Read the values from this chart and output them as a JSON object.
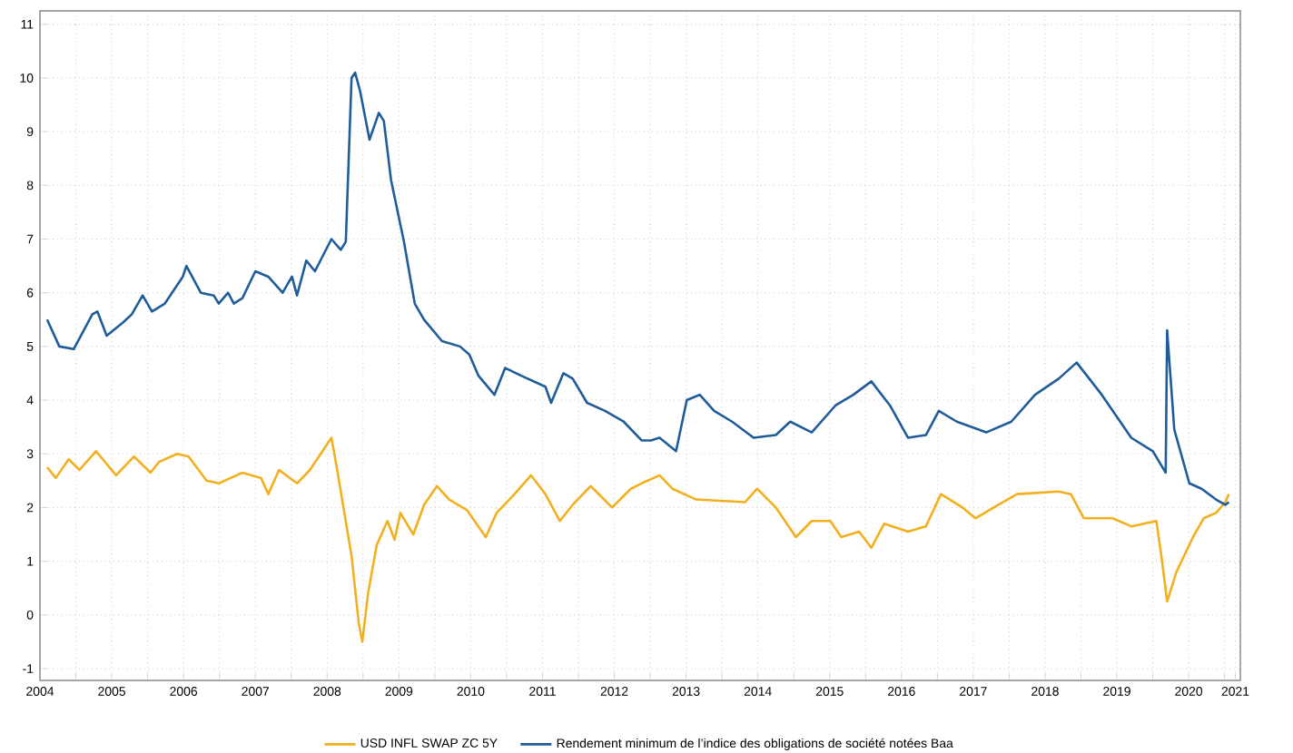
{
  "chart_data": {
    "type": "line",
    "series": [
      {
        "name": "USD INFL SWAP ZC 5Y",
        "color": "#f2b01e",
        "x": [
          2004.6,
          2004.72,
          2004.9,
          2005.05,
          2005.28,
          2005.56,
          2005.81,
          2006.04,
          2006.16,
          2006.41,
          2006.57,
          2006.82,
          2006.99,
          2007.32,
          2007.58,
          2007.68,
          2007.83,
          2008.08,
          2008.26,
          2008.56,
          2008.64,
          2008.84,
          2008.94,
          2008.99,
          2009.07,
          2009.19,
          2009.34,
          2009.44,
          2009.52,
          2009.7,
          2009.85,
          2010.03,
          2010.2,
          2010.45,
          2010.71,
          2010.86,
          2011.11,
          2011.34,
          2011.54,
          2011.74,
          2011.92,
          2012.17,
          2012.47,
          2012.73,
          2012.88,
          2013.13,
          2013.31,
          2013.64,
          2014.32,
          2014.49,
          2014.75,
          2015.03,
          2015.25,
          2015.51,
          2015.66,
          2015.91,
          2016.08,
          2016.26,
          2016.59,
          2016.84,
          2017.05,
          2017.35,
          2017.53,
          2017.85,
          2018.11,
          2018.69,
          2018.86,
          2019.04,
          2019.44,
          2019.7,
          2020.05,
          2020.13,
          2020.2,
          2020.33,
          2020.56,
          2020.71,
          2020.88,
          2021.01,
          2021.06
        ],
        "values": [
          2.75,
          2.55,
          2.9,
          2.7,
          3.05,
          2.6,
          2.95,
          2.65,
          2.85,
          3.0,
          2.95,
          2.5,
          2.45,
          2.65,
          2.55,
          2.25,
          2.7,
          2.45,
          2.7,
          3.3,
          2.7,
          1.1,
          -0.15,
          -0.5,
          0.4,
          1.3,
          1.75,
          1.4,
          1.9,
          1.5,
          2.05,
          2.4,
          2.15,
          1.95,
          1.45,
          1.9,
          2.25,
          2.6,
          2.25,
          1.75,
          2.05,
          2.4,
          2.0,
          2.35,
          2.45,
          2.6,
          2.35,
          2.15,
          2.1,
          2.35,
          2.0,
          1.45,
          1.75,
          1.75,
          1.45,
          1.55,
          1.25,
          1.7,
          1.55,
          1.65,
          2.25,
          2.0,
          1.8,
          2.05,
          2.25,
          2.3,
          2.25,
          1.8,
          1.8,
          1.65,
          1.75,
          1.0,
          0.25,
          0.8,
          1.45,
          1.8,
          1.9,
          2.1,
          2.25
        ]
      },
      {
        "name": "Rendement minimum de l’indice des obligations de société notées Baa",
        "color": "#1f5c99",
        "x": [
          2004.6,
          2004.77,
          2004.97,
          2005.23,
          2005.3,
          2005.43,
          2005.66,
          2005.78,
          2005.93,
          2006.06,
          2006.24,
          2006.49,
          2006.54,
          2006.74,
          2006.92,
          2006.99,
          2007.12,
          2007.2,
          2007.32,
          2007.5,
          2007.68,
          2007.88,
          2008.01,
          2008.08,
          2008.21,
          2008.33,
          2008.56,
          2008.69,
          2008.76,
          2008.84,
          2008.89,
          2008.96,
          2009.09,
          2009.22,
          2009.29,
          2009.39,
          2009.57,
          2009.72,
          2009.85,
          2010.1,
          2010.35,
          2010.48,
          2010.61,
          2010.83,
          2010.98,
          2011.21,
          2011.54,
          2011.62,
          2011.79,
          2011.92,
          2012.12,
          2012.37,
          2012.63,
          2012.88,
          2013.01,
          2013.13,
          2013.36,
          2013.51,
          2013.69,
          2013.89,
          2014.14,
          2014.44,
          2014.75,
          2014.95,
          2015.25,
          2015.58,
          2015.83,
          2016.08,
          2016.34,
          2016.59,
          2016.84,
          2017.02,
          2017.27,
          2017.68,
          2018.03,
          2018.36,
          2018.69,
          2018.94,
          2019.29,
          2019.7,
          2020.0,
          2020.18,
          2020.2,
          2020.3,
          2020.51,
          2020.68,
          2020.88,
          2021.01,
          2021.06
        ],
        "values": [
          5.5,
          5.0,
          4.95,
          5.6,
          5.65,
          5.2,
          5.45,
          5.6,
          5.95,
          5.65,
          5.8,
          6.3,
          6.5,
          6.0,
          5.95,
          5.8,
          6.0,
          5.8,
          5.9,
          6.4,
          6.3,
          6.0,
          6.3,
          5.95,
          6.6,
          6.4,
          7.0,
          6.8,
          6.95,
          10.0,
          10.1,
          9.75,
          8.85,
          9.35,
          9.2,
          8.1,
          6.95,
          5.8,
          5.5,
          5.1,
          5.0,
          4.85,
          4.45,
          4.1,
          4.6,
          4.45,
          4.25,
          3.95,
          4.5,
          4.4,
          3.95,
          3.8,
          3.6,
          3.25,
          3.25,
          3.3,
          3.05,
          4.0,
          4.1,
          3.8,
          3.6,
          3.3,
          3.35,
          3.6,
          3.4,
          3.9,
          4.1,
          4.35,
          3.9,
          3.3,
          3.35,
          3.8,
          3.6,
          3.4,
          3.6,
          4.1,
          4.4,
          4.7,
          4.1,
          3.3,
          3.05,
          2.65,
          5.3,
          3.45,
          2.45,
          2.35,
          2.15,
          2.05,
          2.1
        ]
      }
    ],
    "xlim": [
      2004.5,
      2021.22
    ],
    "ylim": [
      -1.22,
      11.25
    ],
    "xticks": [
      {
        "value": 2004.5,
        "label": "2004"
      },
      {
        "value": 2005,
        "label": null
      },
      {
        "value": 2005.5,
        "label": "2005"
      },
      {
        "value": 2006,
        "label": null
      },
      {
        "value": 2006.5,
        "label": "2006"
      },
      {
        "value": 2007,
        "label": null
      },
      {
        "value": 2007.5,
        "label": "2007"
      },
      {
        "value": 2008,
        "label": null
      },
      {
        "value": 2008.5,
        "label": "2008"
      },
      {
        "value": 2009,
        "label": null
      },
      {
        "value": 2009.5,
        "label": "2009"
      },
      {
        "value": 2010,
        "label": null
      },
      {
        "value": 2010.5,
        "label": "2010"
      },
      {
        "value": 2011,
        "label": null
      },
      {
        "value": 2011.5,
        "label": "2011"
      },
      {
        "value": 2012,
        "label": null
      },
      {
        "value": 2012.5,
        "label": "2012"
      },
      {
        "value": 2013,
        "label": null
      },
      {
        "value": 2013.5,
        "label": "2013"
      },
      {
        "value": 2014,
        "label": null
      },
      {
        "value": 2014.5,
        "label": "2014"
      },
      {
        "value": 2015,
        "label": null
      },
      {
        "value": 2015.5,
        "label": "2015"
      },
      {
        "value": 2016,
        "label": null
      },
      {
        "value": 2016.5,
        "label": "2016"
      },
      {
        "value": 2017,
        "label": null
      },
      {
        "value": 2017.5,
        "label": "2017"
      },
      {
        "value": 2018,
        "label": null
      },
      {
        "value": 2018.5,
        "label": "2018"
      },
      {
        "value": 2019,
        "label": null
      },
      {
        "value": 2019.5,
        "label": "2019"
      },
      {
        "value": 2020,
        "label": null
      },
      {
        "value": 2020.5,
        "label": "2020"
      },
      {
        "value": 2021,
        "label": null
      },
      {
        "value": 2021.15,
        "label": "2021"
      }
    ],
    "yticks": [
      -1,
      0,
      1,
      2,
      3,
      4,
      5,
      6,
      7,
      8,
      9,
      10,
      11
    ],
    "grid": true,
    "legend": "bottom"
  }
}
